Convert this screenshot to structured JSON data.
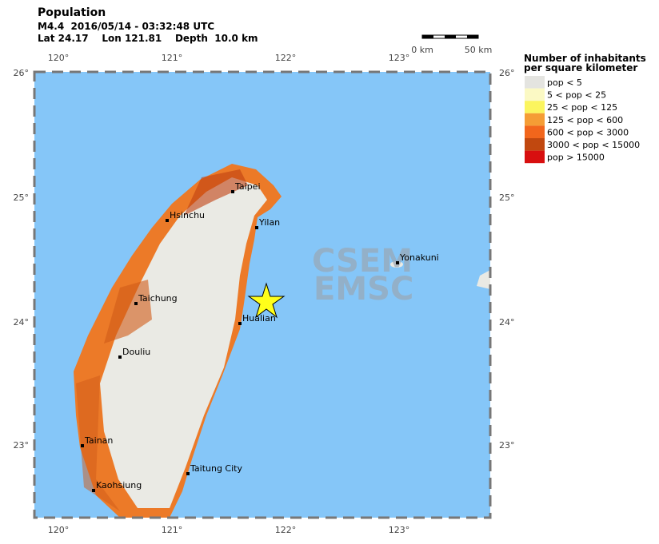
{
  "header": {
    "title": "Population",
    "event": "M4.4  2016/05/14 - 03:32:48 UTC",
    "location": "Lat 24.17    Lon 121.81    Depth  10.0 km"
  },
  "scale": {
    "labels": [
      "0 km",
      "50 km"
    ]
  },
  "axes": {
    "lon_labels": [
      "120°",
      "121°",
      "122°",
      "123°"
    ],
    "lat_labels": [
      "26°",
      "25°",
      "24°",
      "23°"
    ]
  },
  "legend": {
    "title": [
      "Number of inhabitants",
      "per square kilometer"
    ],
    "items": [
      {
        "label": "pop < 5",
        "color": "#e4e4e0"
      },
      {
        "label": "5 < pop < 25",
        "color": "#fbf9c4"
      },
      {
        "label": "25 < pop < 125",
        "color": "#fbf55e"
      },
      {
        "label": "125 < pop < 600",
        "color": "#f59d35"
      },
      {
        "label": "600 < pop < 3000",
        "color": "#f2661c"
      },
      {
        "label": "3000 < pop < 15000",
        "color": "#c1480f"
      },
      {
        "label": "pop > 15000",
        "color": "#d80f0f"
      }
    ]
  },
  "cities": [
    "Taipei",
    "Yilan",
    "Hsinchu",
    "Yonakuni",
    "Taichung",
    "Hualian",
    "Douliu",
    "Tainan",
    "Taitung City",
    "Kaohsiung"
  ],
  "watermark": [
    "CSEM",
    "EMSC"
  ]
}
